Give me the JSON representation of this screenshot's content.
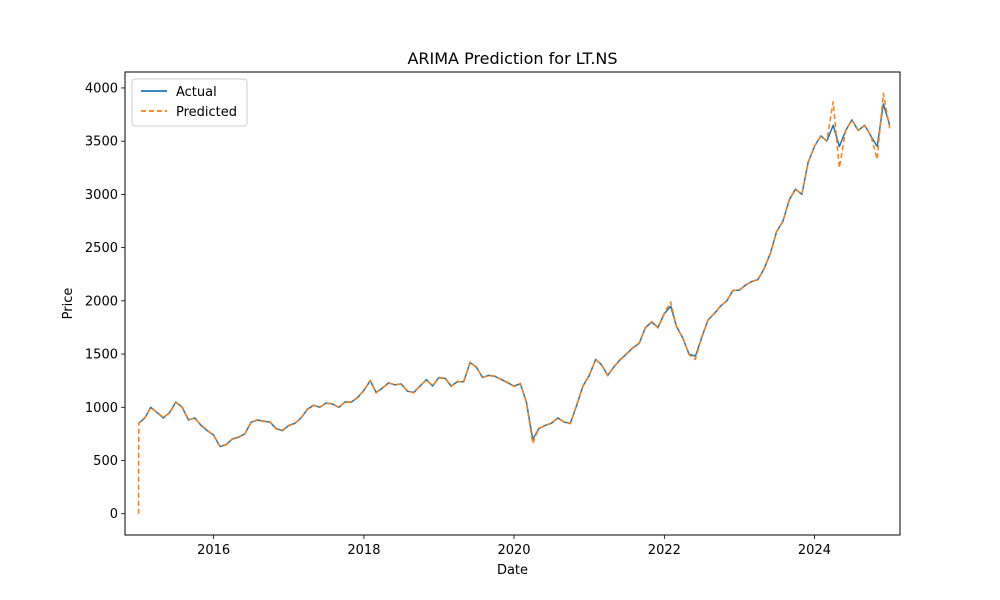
{
  "chart_data": {
    "type": "line",
    "title": "ARIMA Prediction for LT.NS",
    "xlabel": "Date",
    "ylabel": "Price",
    "xlim": [
      "2014-10-27",
      "2025-02-20"
    ],
    "ylim": [
      -200,
      4150
    ],
    "x_ticks": [
      {
        "date": "2016-01-01",
        "label": "2016"
      },
      {
        "date": "2018-01-01",
        "label": "2018"
      },
      {
        "date": "2020-01-01",
        "label": "2020"
      },
      {
        "date": "2022-01-01",
        "label": "2022"
      },
      {
        "date": "2024-01-01",
        "label": "2024"
      }
    ],
    "y_ticks": [
      0,
      500,
      1000,
      1500,
      2000,
      2500,
      3000,
      3500,
      4000
    ],
    "grid": false,
    "legend_position": "upper-left",
    "series": [
      {
        "name": "Actual",
        "color": "#1f77b4",
        "style": "solid",
        "points": [
          [
            "2015-01-01",
            850
          ],
          [
            "2015-02-01",
            900
          ],
          [
            "2015-03-01",
            1000
          ],
          [
            "2015-04-01",
            950
          ],
          [
            "2015-05-01",
            900
          ],
          [
            "2015-06-01",
            950
          ],
          [
            "2015-07-01",
            1050
          ],
          [
            "2015-08-01",
            1000
          ],
          [
            "2015-09-01",
            880
          ],
          [
            "2015-10-01",
            900
          ],
          [
            "2015-11-01",
            830
          ],
          [
            "2015-12-01",
            780
          ],
          [
            "2016-01-01",
            740
          ],
          [
            "2016-02-01",
            630
          ],
          [
            "2016-03-01",
            650
          ],
          [
            "2016-04-01",
            700
          ],
          [
            "2016-05-01",
            720
          ],
          [
            "2016-06-01",
            750
          ],
          [
            "2016-07-01",
            860
          ],
          [
            "2016-08-01",
            880
          ],
          [
            "2016-09-01",
            870
          ],
          [
            "2016-10-01",
            860
          ],
          [
            "2016-11-01",
            800
          ],
          [
            "2016-12-01",
            780
          ],
          [
            "2017-01-01",
            830
          ],
          [
            "2017-02-01",
            850
          ],
          [
            "2017-03-01",
            900
          ],
          [
            "2017-04-01",
            980
          ],
          [
            "2017-05-01",
            1020
          ],
          [
            "2017-06-01",
            1000
          ],
          [
            "2017-07-01",
            1040
          ],
          [
            "2017-08-01",
            1030
          ],
          [
            "2017-09-01",
            1000
          ],
          [
            "2017-10-01",
            1050
          ],
          [
            "2017-11-01",
            1050
          ],
          [
            "2017-12-01",
            1090
          ],
          [
            "2018-01-01",
            1160
          ],
          [
            "2018-02-01",
            1250
          ],
          [
            "2018-03-01",
            1140
          ],
          [
            "2018-04-01",
            1180
          ],
          [
            "2018-05-01",
            1230
          ],
          [
            "2018-06-01",
            1210
          ],
          [
            "2018-07-01",
            1220
          ],
          [
            "2018-08-01",
            1150
          ],
          [
            "2018-09-01",
            1140
          ],
          [
            "2018-10-01",
            1200
          ],
          [
            "2018-11-01",
            1260
          ],
          [
            "2018-12-01",
            1200
          ],
          [
            "2019-01-01",
            1280
          ],
          [
            "2019-02-01",
            1270
          ],
          [
            "2019-03-01",
            1200
          ],
          [
            "2019-04-01",
            1240
          ],
          [
            "2019-05-01",
            1240
          ],
          [
            "2019-06-01",
            1420
          ],
          [
            "2019-07-01",
            1380
          ],
          [
            "2019-08-01",
            1280
          ],
          [
            "2019-09-01",
            1300
          ],
          [
            "2019-10-01",
            1290
          ],
          [
            "2019-11-01",
            1260
          ],
          [
            "2019-12-01",
            1230
          ],
          [
            "2020-01-01",
            1200
          ],
          [
            "2020-02-01",
            1220
          ],
          [
            "2020-03-01",
            1050
          ],
          [
            "2020-04-01",
            700
          ],
          [
            "2020-05-01",
            800
          ],
          [
            "2020-06-01",
            830
          ],
          [
            "2020-07-01",
            850
          ],
          [
            "2020-08-01",
            900
          ],
          [
            "2020-09-01",
            860
          ],
          [
            "2020-10-01",
            850
          ],
          [
            "2020-11-01",
            1020
          ],
          [
            "2020-12-01",
            1200
          ],
          [
            "2021-01-01",
            1300
          ],
          [
            "2021-02-01",
            1450
          ],
          [
            "2021-03-01",
            1400
          ],
          [
            "2021-04-01",
            1300
          ],
          [
            "2021-05-01",
            1380
          ],
          [
            "2021-06-01",
            1450
          ],
          [
            "2021-07-01",
            1500
          ],
          [
            "2021-08-01",
            1560
          ],
          [
            "2021-09-01",
            1600
          ],
          [
            "2021-10-01",
            1750
          ],
          [
            "2021-11-01",
            1800
          ],
          [
            "2021-12-01",
            1750
          ],
          [
            "2022-01-01",
            1880
          ],
          [
            "2022-02-01",
            1950
          ],
          [
            "2022-03-01",
            1760
          ],
          [
            "2022-04-01",
            1650
          ],
          [
            "2022-05-01",
            1500
          ],
          [
            "2022-06-01",
            1480
          ],
          [
            "2022-07-01",
            1650
          ],
          [
            "2022-08-01",
            1820
          ],
          [
            "2022-09-01",
            1880
          ],
          [
            "2022-10-01",
            1950
          ],
          [
            "2022-11-01",
            2000
          ],
          [
            "2022-12-01",
            2100
          ],
          [
            "2023-01-01",
            2100
          ],
          [
            "2023-02-01",
            2150
          ],
          [
            "2023-03-01",
            2180
          ],
          [
            "2023-04-01",
            2200
          ],
          [
            "2023-05-01",
            2300
          ],
          [
            "2023-06-01",
            2450
          ],
          [
            "2023-07-01",
            2650
          ],
          [
            "2023-08-01",
            2750
          ],
          [
            "2023-09-01",
            2950
          ],
          [
            "2023-10-01",
            3050
          ],
          [
            "2023-11-01",
            3000
          ],
          [
            "2023-12-01",
            3300
          ],
          [
            "2024-01-01",
            3450
          ],
          [
            "2024-02-01",
            3550
          ],
          [
            "2024-03-01",
            3500
          ],
          [
            "2024-04-01",
            3650
          ],
          [
            "2024-05-01",
            3450
          ],
          [
            "2024-06-01",
            3600
          ],
          [
            "2024-07-01",
            3700
          ],
          [
            "2024-08-01",
            3600
          ],
          [
            "2024-09-01",
            3650
          ],
          [
            "2024-10-01",
            3550
          ],
          [
            "2024-11-01",
            3450
          ],
          [
            "2024-12-01",
            3850
          ],
          [
            "2025-01-01",
            3650
          ]
        ]
      },
      {
        "name": "Predicted",
        "color": "#ff7f0e",
        "style": "dashed",
        "points": [
          [
            "2015-01-01",
            0
          ],
          [
            "2015-01-02",
            850
          ],
          [
            "2015-02-01",
            905
          ],
          [
            "2015-03-01",
            995
          ],
          [
            "2015-04-01",
            955
          ],
          [
            "2015-05-01",
            905
          ],
          [
            "2015-06-01",
            945
          ],
          [
            "2015-07-01",
            1045
          ],
          [
            "2015-08-01",
            1005
          ],
          [
            "2015-09-01",
            885
          ],
          [
            "2015-10-01",
            895
          ],
          [
            "2015-11-01",
            835
          ],
          [
            "2015-12-01",
            785
          ],
          [
            "2016-01-01",
            735
          ],
          [
            "2016-02-01",
            635
          ],
          [
            "2016-03-01",
            645
          ],
          [
            "2016-04-01",
            705
          ],
          [
            "2016-05-01",
            715
          ],
          [
            "2016-06-01",
            755
          ],
          [
            "2016-07-01",
            855
          ],
          [
            "2016-08-01",
            885
          ],
          [
            "2016-09-01",
            865
          ],
          [
            "2016-10-01",
            865
          ],
          [
            "2016-11-01",
            795
          ],
          [
            "2016-12-01",
            785
          ],
          [
            "2017-01-01",
            825
          ],
          [
            "2017-02-01",
            855
          ],
          [
            "2017-03-01",
            895
          ],
          [
            "2017-04-01",
            985
          ],
          [
            "2017-05-01",
            1015
          ],
          [
            "2017-06-01",
            1005
          ],
          [
            "2017-07-01",
            1035
          ],
          [
            "2017-08-01",
            1035
          ],
          [
            "2017-09-01",
            995
          ],
          [
            "2017-10-01",
            1055
          ],
          [
            "2017-11-01",
            1045
          ],
          [
            "2017-12-01",
            1095
          ],
          [
            "2018-01-01",
            1155
          ],
          [
            "2018-02-01",
            1255
          ],
          [
            "2018-03-01",
            1135
          ],
          [
            "2018-04-01",
            1185
          ],
          [
            "2018-05-01",
            1225
          ],
          [
            "2018-06-01",
            1215
          ],
          [
            "2018-07-01",
            1215
          ],
          [
            "2018-08-01",
            1155
          ],
          [
            "2018-09-01",
            1135
          ],
          [
            "2018-10-01",
            1205
          ],
          [
            "2018-11-01",
            1255
          ],
          [
            "2018-12-01",
            1205
          ],
          [
            "2019-01-01",
            1275
          ],
          [
            "2019-02-01",
            1275
          ],
          [
            "2019-03-01",
            1195
          ],
          [
            "2019-04-01",
            1245
          ],
          [
            "2019-05-01",
            1235
          ],
          [
            "2019-06-01",
            1425
          ],
          [
            "2019-07-01",
            1375
          ],
          [
            "2019-08-01",
            1285
          ],
          [
            "2019-09-01",
            1295
          ],
          [
            "2019-10-01",
            1295
          ],
          [
            "2019-11-01",
            1255
          ],
          [
            "2019-12-01",
            1235
          ],
          [
            "2020-01-01",
            1195
          ],
          [
            "2020-02-01",
            1225
          ],
          [
            "2020-03-01",
            1045
          ],
          [
            "2020-04-01",
            660
          ],
          [
            "2020-05-01",
            805
          ],
          [
            "2020-06-01",
            825
          ],
          [
            "2020-07-01",
            855
          ],
          [
            "2020-08-01",
            895
          ],
          [
            "2020-09-01",
            865
          ],
          [
            "2020-10-01",
            845
          ],
          [
            "2020-11-01",
            1025
          ],
          [
            "2020-12-01",
            1195
          ],
          [
            "2021-01-01",
            1305
          ],
          [
            "2021-02-01",
            1445
          ],
          [
            "2021-03-01",
            1405
          ],
          [
            "2021-04-01",
            1295
          ],
          [
            "2021-05-01",
            1385
          ],
          [
            "2021-06-01",
            1445
          ],
          [
            "2021-07-01",
            1505
          ],
          [
            "2021-08-01",
            1555
          ],
          [
            "2021-09-01",
            1605
          ],
          [
            "2021-10-01",
            1745
          ],
          [
            "2021-11-01",
            1805
          ],
          [
            "2021-12-01",
            1745
          ],
          [
            "2022-01-01",
            1885
          ],
          [
            "2022-02-01",
            1990
          ],
          [
            "2022-03-01",
            1755
          ],
          [
            "2022-04-01",
            1655
          ],
          [
            "2022-05-01",
            1495
          ],
          [
            "2022-06-01",
            1450
          ],
          [
            "2022-07-01",
            1655
          ],
          [
            "2022-08-01",
            1815
          ],
          [
            "2022-09-01",
            1885
          ],
          [
            "2022-10-01",
            1945
          ],
          [
            "2022-11-01",
            2005
          ],
          [
            "2022-12-01",
            2095
          ],
          [
            "2023-01-01",
            2105
          ],
          [
            "2023-02-01",
            2145
          ],
          [
            "2023-03-01",
            2185
          ],
          [
            "2023-04-01",
            2195
          ],
          [
            "2023-05-01",
            2305
          ],
          [
            "2023-06-01",
            2445
          ],
          [
            "2023-07-01",
            2655
          ],
          [
            "2023-08-01",
            2745
          ],
          [
            "2023-09-01",
            2955
          ],
          [
            "2023-10-01",
            3045
          ],
          [
            "2023-11-01",
            3005
          ],
          [
            "2023-12-01",
            3295
          ],
          [
            "2024-01-01",
            3455
          ],
          [
            "2024-02-01",
            3545
          ],
          [
            "2024-03-01",
            3505
          ],
          [
            "2024-04-01",
            3870
          ],
          [
            "2024-05-01",
            3250
          ],
          [
            "2024-06-01",
            3605
          ],
          [
            "2024-07-01",
            3695
          ],
          [
            "2024-08-01",
            3605
          ],
          [
            "2024-09-01",
            3645
          ],
          [
            "2024-10-01",
            3555
          ],
          [
            "2024-11-01",
            3330
          ],
          [
            "2024-12-01",
            3950
          ],
          [
            "2025-01-01",
            3620
          ]
        ]
      }
    ]
  }
}
